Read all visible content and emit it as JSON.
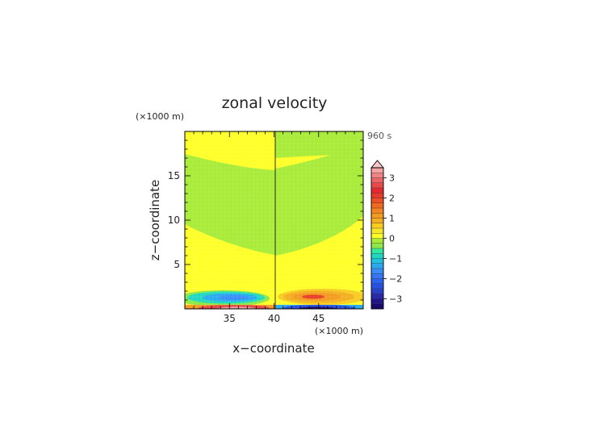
{
  "chart_data": {
    "type": "heatmap",
    "title": "zonal velocity",
    "time_label": "960 s",
    "xlabel": "x−coordinate",
    "ylabel": "z−coordinate",
    "x_unit": "(×1000 m)",
    "y_unit": "(×1000 m)",
    "xlim": [
      30,
      50
    ],
    "ylim": [
      0,
      20
    ],
    "x_ticks": [
      {
        "value": 35,
        "label": "35"
      },
      {
        "value": 40,
        "label": "40"
      },
      {
        "value": 45,
        "label": "45"
      }
    ],
    "y_ticks": [
      {
        "value": 5,
        "label": "5"
      },
      {
        "value": 10,
        "label": "10"
      },
      {
        "value": 15,
        "label": "15"
      }
    ],
    "colorbar": {
      "levels": [
        -3.5,
        -3.25,
        -3,
        -2.75,
        -2.5,
        -2.25,
        -2,
        -1.75,
        -1.5,
        -1.25,
        -1,
        -0.75,
        -0.5,
        -0.25,
        0,
        0.25,
        0.5,
        0.75,
        1,
        1.25,
        1.5,
        1.75,
        2,
        2.25,
        2.5,
        2.75,
        3,
        3.25,
        3.5
      ],
      "colors": [
        "#1a0a6e",
        "#22148c",
        "#2a2aa8",
        "#2a40c8",
        "#2850e0",
        "#2c62f0",
        "#3476f4",
        "#3a8cf8",
        "#2aa8f0",
        "#20c0e0",
        "#20d8c0",
        "#30e8a0",
        "#8ce848",
        "#a8ec38",
        "#ffff28",
        "#f8e828",
        "#f8cc20",
        "#f4ae20",
        "#f49a20",
        "#f48422",
        "#f06a22",
        "#ec5024",
        "#e83a28",
        "#e42a30",
        "#e84848",
        "#ec6464",
        "#f08484",
        "#f4a4a4"
      ],
      "tick_values": [
        -3,
        -2,
        -1,
        0,
        1,
        2,
        3
      ],
      "tick_labels": [
        "−3",
        "−2",
        "−1",
        "0",
        "1",
        "2",
        "3"
      ],
      "extend": "max"
    },
    "regions": [
      {
        "value": 0.1,
        "desc": "left yellow background"
      },
      {
        "value": -0.3,
        "desc": "left green band z 6.5-15.7 (x=30), top at bulge"
      },
      {
        "value": -0.3,
        "desc": "right green band mirrored"
      },
      {
        "value": 0.1,
        "desc": "right yellow background"
      },
      {
        "value": -1.0,
        "desc": "left low-level jet, negative"
      },
      {
        "value": 1.0,
        "desc": "right low-level jet, positive"
      },
      {
        "value": 3.0,
        "desc": "surface positive under left jet"
      },
      {
        "value": -3.0,
        "desc": "surface negative under right jet"
      }
    ]
  }
}
